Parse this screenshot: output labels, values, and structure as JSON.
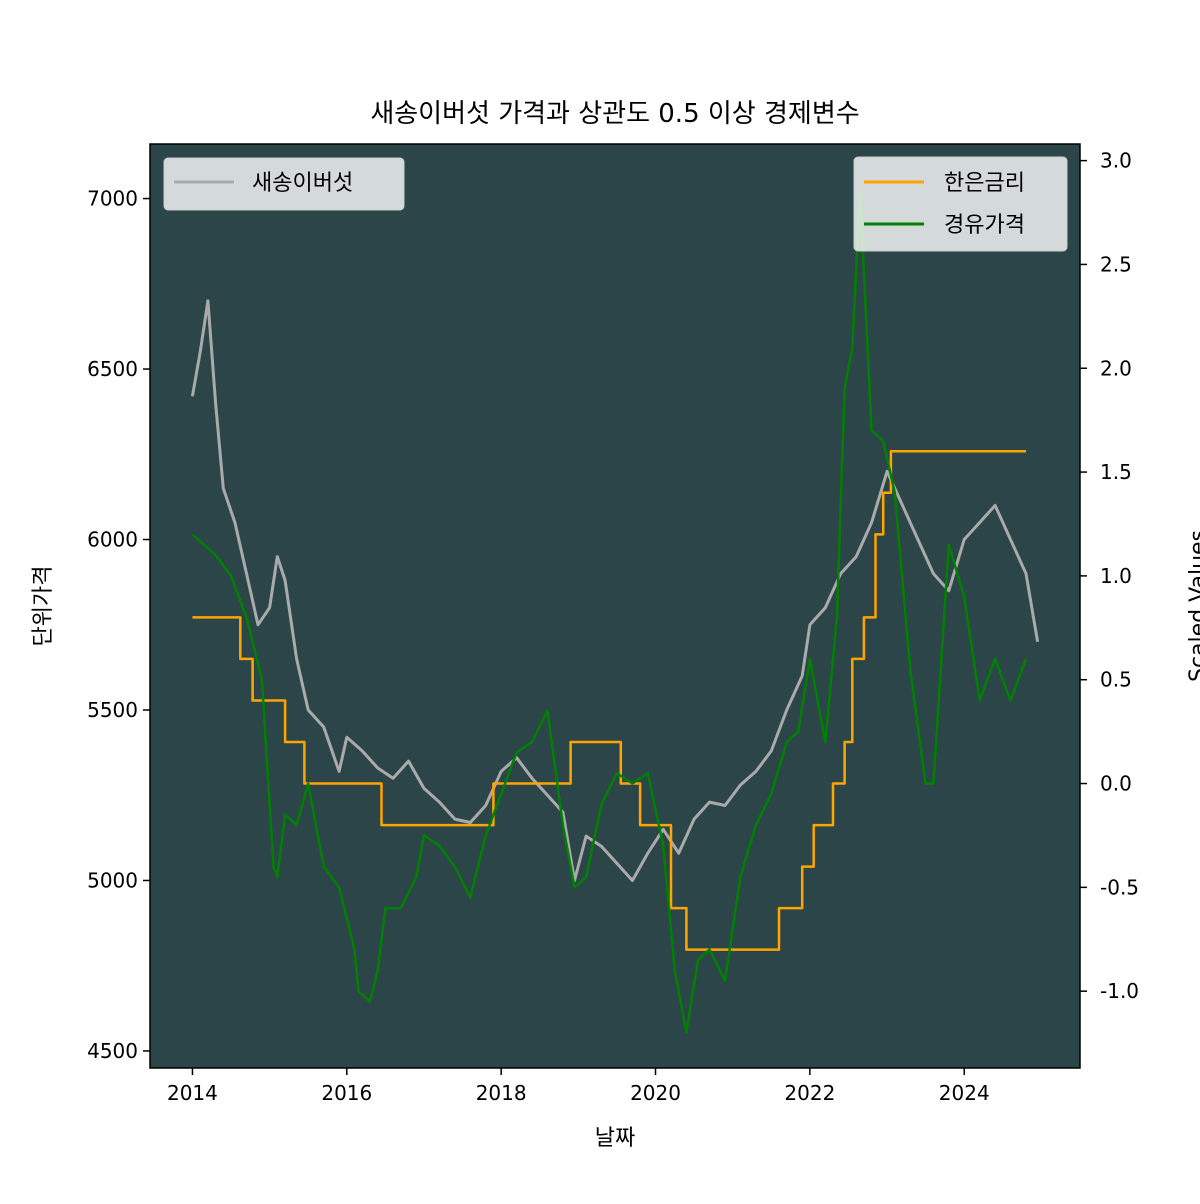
{
  "chart_data": {
    "type": "line",
    "title": "새송이버섯 가격과 상관도 0.5 이상 경제변수",
    "xlabel": "날짜",
    "ylabel_left": "단위가격",
    "ylabel_right": "Scaled Values",
    "x_ticks": [
      "2014",
      "2016",
      "2018",
      "2020",
      "2022",
      "2024"
    ],
    "y_left_ticks": [
      "4500",
      "5000",
      "5500",
      "6000",
      "6500",
      "7000"
    ],
    "y_right_ticks": [
      "-1.0",
      "-0.5",
      "0.0",
      "0.5",
      "1.0",
      "1.5",
      "2.0",
      "2.5",
      "3.0"
    ],
    "xlim": [
      2013.45,
      2025.5
    ],
    "ylim_left": [
      4450,
      7160
    ],
    "ylim_right": [
      -1.37,
      3.08
    ],
    "plot_background": "#2c4549",
    "colors": {
      "price": "#aaaaaa",
      "rate": "#ffa500",
      "oil": "#008000"
    },
    "legend_left": {
      "position": "top-left",
      "entries": [
        {
          "name": "새송이버섯",
          "color": "#aaaaaa"
        }
      ]
    },
    "legend_right": {
      "position": "top-right",
      "entries": [
        {
          "name": "한은금리",
          "color": "#ffa500"
        },
        {
          "name": "경유가격",
          "color": "#008000"
        }
      ]
    },
    "series": [
      {
        "name": "새송이버섯",
        "axis": "left",
        "x": [
          2014.0,
          2014.1,
          2014.2,
          2014.3,
          2014.4,
          2014.55,
          2014.7,
          2014.85,
          2015.0,
          2015.1,
          2015.2,
          2015.35,
          2015.5,
          2015.7,
          2015.9,
          2016.0,
          2016.2,
          2016.4,
          2016.6,
          2016.8,
          2017.0,
          2017.2,
          2017.4,
          2017.6,
          2017.8,
          2018.0,
          2018.2,
          2018.4,
          2018.6,
          2018.8,
          2018.95,
          2019.1,
          2019.3,
          2019.5,
          2019.7,
          2019.9,
          2020.1,
          2020.3,
          2020.5,
          2020.7,
          2020.9,
          2021.1,
          2021.3,
          2021.5,
          2021.7,
          2021.9,
          2022.0,
          2022.2,
          2022.4,
          2022.6,
          2022.8,
          2023.0,
          2023.2,
          2023.4,
          2023.6,
          2023.8,
          2024.0,
          2024.2,
          2024.4,
          2024.6,
          2024.8,
          2024.95
        ],
        "y": [
          6420,
          6550,
          6700,
          6400,
          6150,
          6050,
          5900,
          5750,
          5800,
          5950,
          5880,
          5650,
          5500,
          5450,
          5320,
          5420,
          5380,
          5330,
          5300,
          5350,
          5270,
          5230,
          5180,
          5170,
          5220,
          5320,
          5360,
          5300,
          5250,
          5200,
          5000,
          5130,
          5100,
          5050,
          5000,
          5080,
          5150,
          5080,
          5180,
          5230,
          5220,
          5280,
          5320,
          5380,
          5500,
          5600,
          5750,
          5800,
          5900,
          5950,
          6050,
          6200,
          6100,
          6000,
          5900,
          5850,
          6000,
          6050,
          6100,
          6000,
          5900,
          5700
        ]
      },
      {
        "name": "한은금리",
        "axis": "right",
        "x": [
          2014.0,
          2014.62,
          2014.62,
          2014.78,
          2014.78,
          2015.2,
          2015.2,
          2015.45,
          2015.45,
          2016.45,
          2016.45,
          2017.9,
          2017.9,
          2018.9,
          2018.9,
          2019.55,
          2019.55,
          2019.8,
          2019.8,
          2020.2,
          2020.2,
          2020.4,
          2020.4,
          2021.6,
          2021.6,
          2021.9,
          2021.9,
          2022.05,
          2022.05,
          2022.3,
          2022.3,
          2022.45,
          2022.45,
          2022.55,
          2022.55,
          2022.7,
          2022.7,
          2022.85,
          2022.85,
          2022.95,
          2022.95,
          2023.05,
          2023.05,
          2024.8
        ],
        "y": [
          0.8,
          0.8,
          0.6,
          0.6,
          0.4,
          0.4,
          0.2,
          0.2,
          0.0,
          0.0,
          -0.2,
          -0.2,
          0.0,
          0.0,
          0.2,
          0.2,
          0.0,
          0.0,
          -0.2,
          -0.2,
          -0.6,
          -0.6,
          -0.8,
          -0.8,
          -0.6,
          -0.6,
          -0.4,
          -0.4,
          -0.2,
          -0.2,
          0.0,
          0.0,
          0.2,
          0.2,
          0.6,
          0.6,
          0.8,
          0.8,
          1.2,
          1.2,
          1.4,
          1.4,
          1.6,
          1.6
        ]
      },
      {
        "name": "경유가격",
        "axis": "right",
        "x": [
          2014.0,
          2014.3,
          2014.5,
          2014.7,
          2014.9,
          2015.05,
          2015.1,
          2015.2,
          2015.35,
          2015.5,
          2015.7,
          2015.9,
          2016.1,
          2016.15,
          2016.3,
          2016.4,
          2016.5,
          2016.7,
          2016.9,
          2017.0,
          2017.2,
          2017.4,
          2017.6,
          2017.8,
          2018.0,
          2018.2,
          2018.4,
          2018.6,
          2018.8,
          2018.95,
          2019.1,
          2019.3,
          2019.5,
          2019.7,
          2019.9,
          2020.1,
          2020.25,
          2020.4,
          2020.55,
          2020.7,
          2020.9,
          2021.1,
          2021.3,
          2021.5,
          2021.7,
          2021.85,
          2022.0,
          2022.2,
          2022.35,
          2022.45,
          2022.55,
          2022.65,
          2022.8,
          2022.95,
          2023.1,
          2023.3,
          2023.5,
          2023.6,
          2023.8,
          2024.0,
          2024.2,
          2024.4,
          2024.6,
          2024.8
        ],
        "y": [
          1.2,
          1.1,
          1.0,
          0.8,
          0.5,
          -0.4,
          -0.45,
          -0.15,
          -0.2,
          0.0,
          -0.4,
          -0.5,
          -0.8,
          -1.0,
          -1.05,
          -0.9,
          -0.6,
          -0.6,
          -0.45,
          -0.25,
          -0.3,
          -0.4,
          -0.55,
          -0.25,
          -0.05,
          0.15,
          0.2,
          0.35,
          -0.2,
          -0.5,
          -0.45,
          -0.1,
          0.05,
          0.0,
          0.05,
          -0.3,
          -0.9,
          -1.2,
          -0.85,
          -0.8,
          -0.95,
          -0.45,
          -0.2,
          -0.05,
          0.2,
          0.25,
          0.6,
          0.2,
          0.8,
          1.9,
          2.1,
          2.85,
          1.7,
          1.65,
          1.4,
          0.55,
          0.0,
          0.0,
          1.15,
          0.9,
          0.4,
          0.6,
          0.4,
          0.6
        ]
      }
    ]
  }
}
